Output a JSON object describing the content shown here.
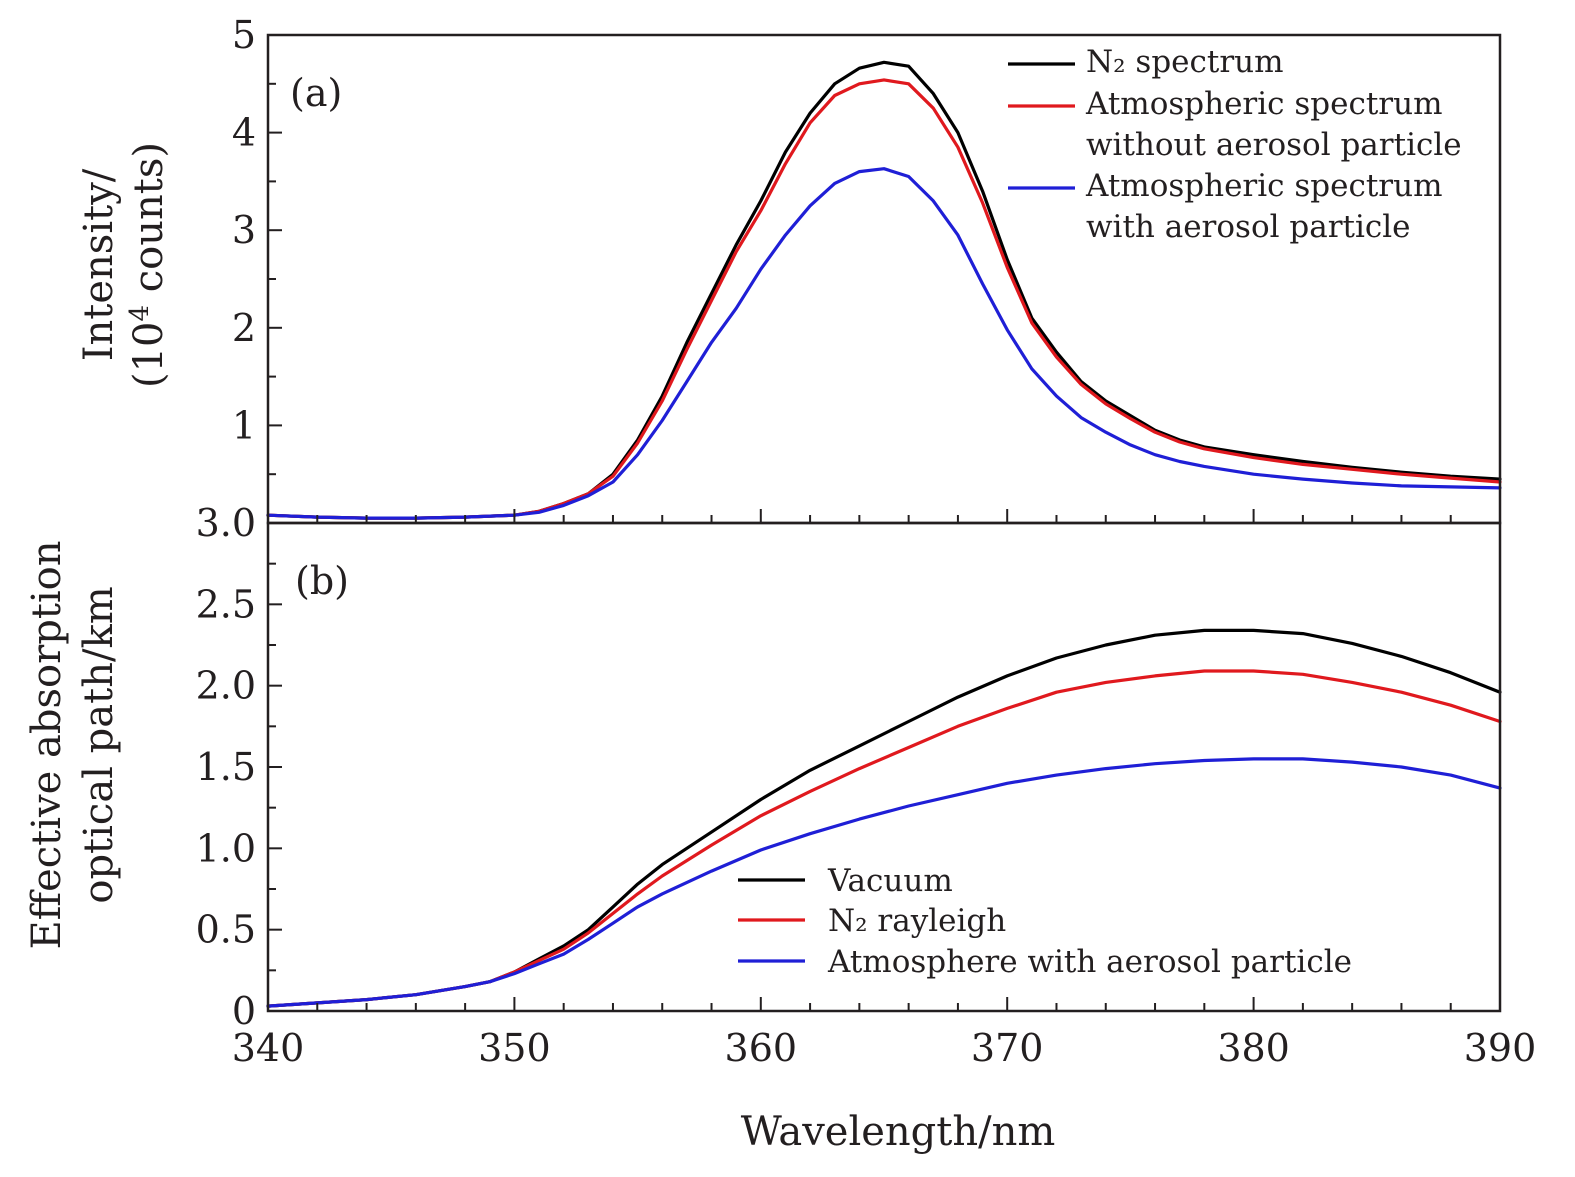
{
  "chart_data": [
    {
      "type": "line",
      "panel_tag": "(a)",
      "ylabel_line1": "Intensity/",
      "ylabel_line2_pre": "(10",
      "ylabel_line2_sup": "4",
      "ylabel_line2_post": " counts)",
      "xlim": [
        340,
        390
      ],
      "ylim": [
        0,
        5
      ],
      "y_ticks": [
        1,
        2,
        3,
        4,
        5
      ],
      "y_tick_labels": [
        "1",
        "2",
        "3",
        "4",
        "5"
      ],
      "x_ticks": [
        340,
        350,
        360,
        370,
        380,
        390
      ],
      "legend_position": "top-right",
      "series": [
        {
          "name": "N₂ spectrum",
          "color": "#000000",
          "x": [
            340,
            342,
            344,
            346,
            348,
            350,
            351,
            352,
            353,
            354,
            355,
            356,
            357,
            358,
            359,
            360,
            361,
            362,
            363,
            364,
            365,
            366,
            367,
            368,
            369,
            370,
            371,
            372,
            373,
            374,
            375,
            376,
            377,
            378,
            380,
            382,
            384,
            386,
            388,
            390
          ],
          "y": [
            0.08,
            0.06,
            0.05,
            0.05,
            0.06,
            0.08,
            0.12,
            0.2,
            0.3,
            0.5,
            0.85,
            1.3,
            1.85,
            2.35,
            2.85,
            3.3,
            3.8,
            4.2,
            4.5,
            4.66,
            4.72,
            4.68,
            4.4,
            4.0,
            3.4,
            2.7,
            2.1,
            1.75,
            1.45,
            1.25,
            1.1,
            0.95,
            0.85,
            0.78,
            0.7,
            0.63,
            0.57,
            0.52,
            0.48,
            0.45
          ]
        },
        {
          "name": "Atmospheric spectrum without aerosol particle",
          "color": "#e0191e",
          "x": [
            340,
            342,
            344,
            346,
            348,
            350,
            351,
            352,
            353,
            354,
            355,
            356,
            357,
            358,
            359,
            360,
            361,
            362,
            363,
            364,
            365,
            366,
            367,
            368,
            369,
            370,
            371,
            372,
            373,
            374,
            375,
            376,
            377,
            378,
            380,
            382,
            384,
            386,
            388,
            390
          ],
          "y": [
            0.08,
            0.06,
            0.05,
            0.05,
            0.06,
            0.08,
            0.12,
            0.2,
            0.3,
            0.48,
            0.82,
            1.25,
            1.78,
            2.28,
            2.78,
            3.2,
            3.68,
            4.1,
            4.38,
            4.5,
            4.54,
            4.5,
            4.25,
            3.85,
            3.28,
            2.62,
            2.05,
            1.7,
            1.42,
            1.22,
            1.07,
            0.93,
            0.83,
            0.76,
            0.67,
            0.6,
            0.55,
            0.5,
            0.46,
            0.42
          ]
        },
        {
          "name": "Atmospheric spectrum with aerosol particle",
          "color": "#1f1fd6",
          "x": [
            340,
            342,
            344,
            346,
            348,
            350,
            351,
            352,
            353,
            354,
            355,
            356,
            357,
            358,
            359,
            360,
            361,
            362,
            363,
            364,
            365,
            366,
            367,
            368,
            369,
            370,
            371,
            372,
            373,
            374,
            375,
            376,
            377,
            378,
            380,
            382,
            384,
            386,
            388,
            390
          ],
          "y": [
            0.08,
            0.06,
            0.05,
            0.05,
            0.06,
            0.08,
            0.11,
            0.18,
            0.28,
            0.42,
            0.7,
            1.05,
            1.45,
            1.85,
            2.2,
            2.6,
            2.95,
            3.25,
            3.48,
            3.6,
            3.63,
            3.55,
            3.3,
            2.95,
            2.45,
            1.98,
            1.58,
            1.3,
            1.08,
            0.93,
            0.8,
            0.7,
            0.63,
            0.58,
            0.5,
            0.45,
            0.41,
            0.38,
            0.37,
            0.36
          ]
        }
      ]
    },
    {
      "type": "line",
      "panel_tag": "(b)",
      "ylabel_line1": "Effective absorption",
      "ylabel_line2": "optical path/km",
      "xlabel": "Wavelength/nm",
      "xlim": [
        340,
        390
      ],
      "ylim": [
        0,
        3.0
      ],
      "y_ticks": [
        0,
        0.5,
        1.0,
        1.5,
        2.0,
        2.5,
        3.0
      ],
      "y_tick_labels": [
        "0",
        "0.5",
        "1.0",
        "1.5",
        "2.0",
        "2.5",
        "3.0"
      ],
      "x_ticks": [
        340,
        350,
        360,
        370,
        380,
        390
      ],
      "x_tick_labels": [
        "340",
        "350",
        "360",
        "370",
        "380",
        "390"
      ],
      "legend_position": "bottom-right",
      "series": [
        {
          "name": "Vacuum",
          "color": "#000000",
          "x": [
            340,
            342,
            344,
            346,
            348,
            349,
            350,
            351,
            352,
            353,
            354,
            355,
            356,
            358,
            360,
            362,
            364,
            366,
            368,
            370,
            372,
            374,
            376,
            378,
            380,
            382,
            384,
            386,
            388,
            390
          ],
          "y": [
            0.03,
            0.05,
            0.07,
            0.1,
            0.15,
            0.18,
            0.24,
            0.32,
            0.4,
            0.5,
            0.64,
            0.78,
            0.9,
            1.1,
            1.3,
            1.48,
            1.63,
            1.78,
            1.93,
            2.06,
            2.17,
            2.25,
            2.31,
            2.34,
            2.34,
            2.32,
            2.26,
            2.18,
            2.08,
            1.96
          ]
        },
        {
          "name": "N₂ rayleigh",
          "color": "#e0191e",
          "x": [
            340,
            342,
            344,
            346,
            348,
            349,
            350,
            351,
            352,
            353,
            354,
            355,
            356,
            358,
            360,
            362,
            364,
            366,
            368,
            370,
            372,
            374,
            376,
            378,
            380,
            382,
            384,
            386,
            388,
            390
          ],
          "y": [
            0.03,
            0.05,
            0.07,
            0.1,
            0.15,
            0.18,
            0.24,
            0.31,
            0.38,
            0.48,
            0.6,
            0.72,
            0.83,
            1.02,
            1.2,
            1.35,
            1.49,
            1.62,
            1.75,
            1.86,
            1.96,
            2.02,
            2.06,
            2.09,
            2.09,
            2.07,
            2.02,
            1.96,
            1.88,
            1.78
          ]
        },
        {
          "name": "Atmosphere with aerosol particle",
          "color": "#1f1fd6",
          "x": [
            340,
            342,
            344,
            346,
            348,
            349,
            350,
            351,
            352,
            353,
            354,
            355,
            356,
            358,
            360,
            362,
            364,
            366,
            368,
            370,
            372,
            374,
            376,
            378,
            380,
            382,
            384,
            386,
            388,
            390
          ],
          "y": [
            0.03,
            0.05,
            0.07,
            0.1,
            0.15,
            0.18,
            0.23,
            0.29,
            0.35,
            0.44,
            0.54,
            0.64,
            0.72,
            0.86,
            0.99,
            1.09,
            1.18,
            1.26,
            1.33,
            1.4,
            1.45,
            1.49,
            1.52,
            1.54,
            1.55,
            1.55,
            1.53,
            1.5,
            1.45,
            1.37
          ]
        }
      ]
    }
  ]
}
